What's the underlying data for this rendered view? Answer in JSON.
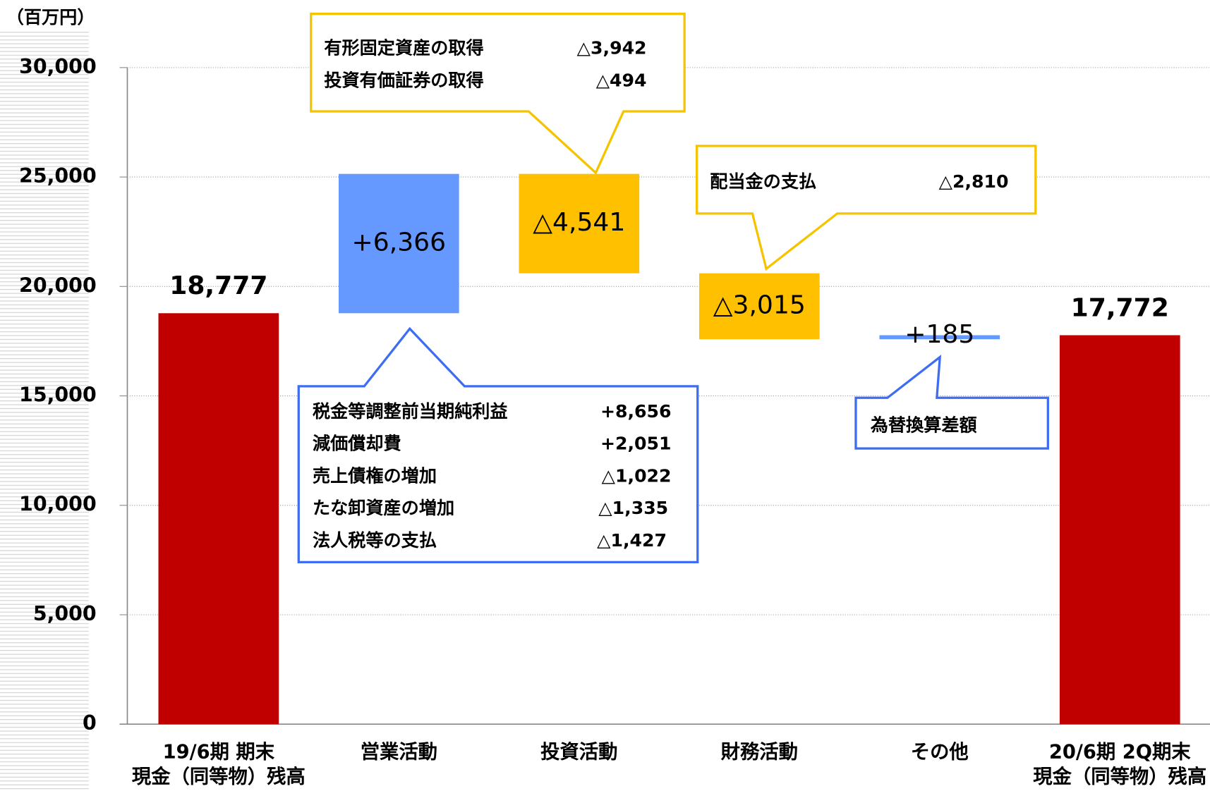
{
  "chart_data": {
    "type": "waterfall",
    "unit_label": "（百万円）",
    "categories": [
      "19/6期 期末\n現金（同等物）残高",
      "営業活動",
      "投資活動",
      "財務活動",
      "その他",
      "20/6期 2Q期末\n現金（同等物）残高"
    ],
    "measure": [
      "absolute",
      "relative",
      "relative",
      "relative",
      "relative",
      "absolute"
    ],
    "values": [
      18777,
      6366,
      -4541,
      -3015,
      185,
      17772
    ],
    "value_labels": [
      "18,777",
      "+6,366",
      "△4,541",
      "△3,015",
      "+185",
      "17,772"
    ],
    "colors": [
      "#c00000",
      "#6699ff",
      "#ffc000",
      "#ffc000",
      "#6699ff",
      "#c00000"
    ],
    "ylim": [
      0,
      30000
    ],
    "yticks": [
      0,
      {
        "value": 5000,
        "label": "5,000"
      },
      {
        "value": 10000,
        "label": "10,000"
      },
      {
        "value": 15000,
        "label": "15,000"
      },
      {
        "value": 20000,
        "label": "20,000"
      },
      {
        "value": 25000,
        "label": "25,000"
      },
      {
        "value": 30000,
        "label": "30,000"
      }
    ],
    "grid": true,
    "annotations": [
      {
        "rows": [
          {
            "label": "有形固定資産の取得",
            "amount": "△3,942"
          },
          {
            "label": "投資有価証券の取得",
            "amount": "△494"
          }
        ]
      },
      {
        "rows": [
          {
            "label": "配当金の支払",
            "amount": "△2,810"
          }
        ]
      },
      {
        "rows": [
          {
            "label": "税金等調整前当期純利益",
            "amount": "+8,656"
          },
          {
            "label": "減価償却費",
            "amount": "+2,051"
          },
          {
            "label": "売上債権の増加",
            "amount": "△1,022"
          },
          {
            "label": "たな卸資産の増加",
            "amount": "△1,335"
          },
          {
            "label": "法人税等の支払",
            "amount": "△1,427"
          }
        ]
      },
      {
        "rows": [
          {
            "label": "為替換算差額"
          }
        ]
      }
    ]
  }
}
